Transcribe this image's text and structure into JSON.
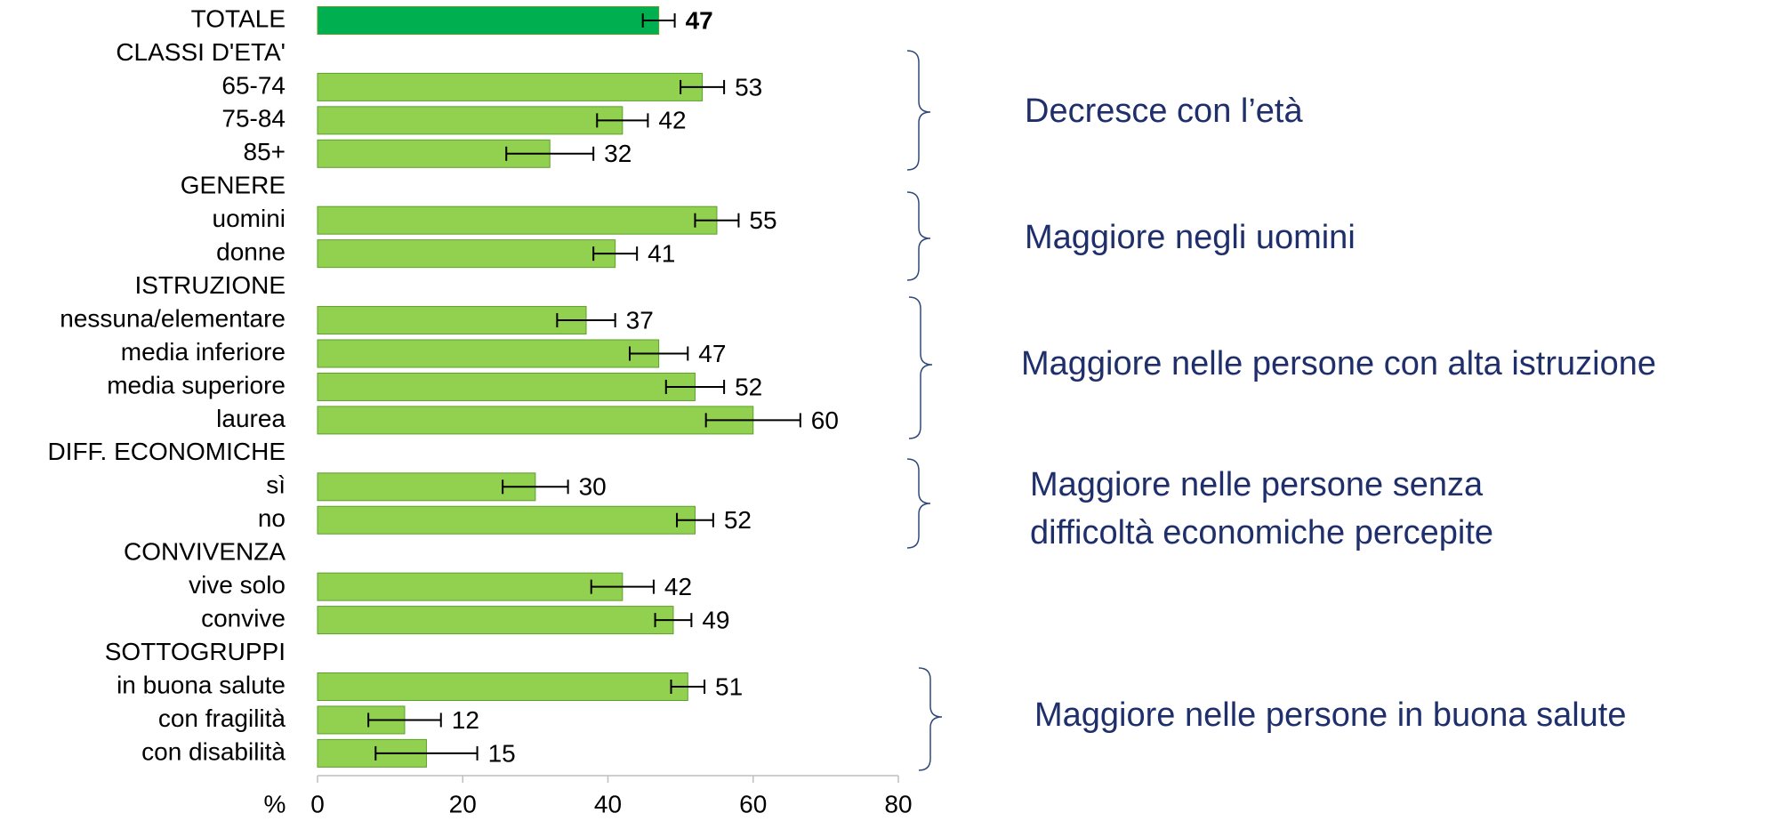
{
  "chart_data": {
    "type": "bar",
    "orientation": "horizontal",
    "categories": [
      "TOTALE",
      "CLASSI D'ETA'",
      "65-74",
      "75-84",
      "85+",
      "GENERE",
      "uomini",
      "donne",
      "ISTRUZIONE",
      "nessuna/elementare",
      "media inferiore",
      "media superiore",
      "laurea",
      "DIFF. ECONOMICHE",
      "sì",
      "no",
      "CONVIVENZA",
      "vive solo",
      "convive",
      "SOTTOGRUPPI",
      "in buona salute",
      "con fragilità",
      "con disabilità"
    ],
    "values": [
      47,
      null,
      53,
      42,
      32,
      null,
      55,
      41,
      null,
      37,
      47,
      52,
      60,
      null,
      30,
      52,
      null,
      42,
      49,
      null,
      51,
      12,
      15
    ],
    "errors": [
      2.2,
      null,
      3,
      3.5,
      6,
      null,
      3,
      3,
      null,
      4,
      4,
      4,
      6.5,
      null,
      4.5,
      2.5,
      null,
      4.3,
      2.5,
      null,
      2.3,
      5,
      7
    ],
    "colors": [
      "#00b050",
      null,
      "#92d050",
      "#92d050",
      "#92d050",
      null,
      "#92d050",
      "#92d050",
      null,
      "#92d050",
      "#92d050",
      "#92d050",
      "#92d050",
      null,
      "#92d050",
      "#92d050",
      null,
      "#92d050",
      "#92d050",
      null,
      "#92d050",
      "#92d050",
      "#92d050"
    ],
    "xlabel": "%",
    "xlim": [
      0,
      80
    ],
    "xticks": [
      0,
      20,
      40,
      60,
      80
    ],
    "annotations": [
      {
        "lines": [
          "Decresce con l’età"
        ]
      },
      {
        "lines": [
          "Maggiore negli uomini"
        ]
      },
      {
        "lines": [
          "Maggiore nelle persone con alta istruzione"
        ]
      },
      {
        "lines": [
          "Maggiore nelle persone senza",
          "difficoltà economiche percepite"
        ]
      },
      {
        "lines": [
          "Maggiore nelle persone in buona salute"
        ]
      }
    ]
  }
}
